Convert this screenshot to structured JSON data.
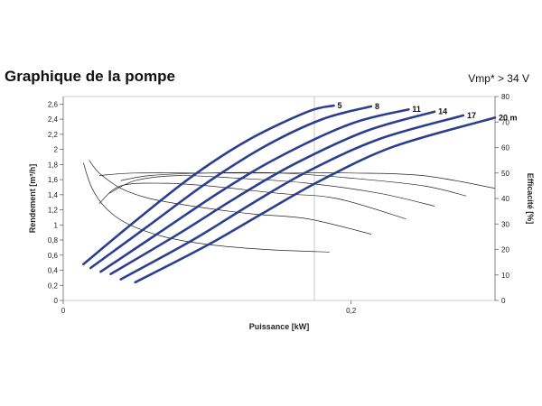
{
  "header": {
    "title": "Graphique de la pompe",
    "note": "Vmp* > 34 V"
  },
  "chart_data": {
    "type": "line",
    "xlabel": "Puissance [kW]",
    "ylabel": "Rendement [m³/h]",
    "y2label": "Efficacité [%]",
    "xlim": [
      0,
      0.3
    ],
    "ylim": [
      0,
      2.7
    ],
    "y2lim": [
      0,
      80
    ],
    "x_ticks": [
      "0",
      "0,2"
    ],
    "y_ticks": [
      "0",
      "0,2",
      "0,4",
      "0,6",
      "0,8",
      "1",
      "1,2",
      "1,4",
      "1,6",
      "1,8",
      "2",
      "2,2",
      "2,4",
      "2,6"
    ],
    "y2_ticks": [
      "0",
      "10",
      "20",
      "30",
      "40",
      "50",
      "60",
      "70",
      "80"
    ],
    "grid": false,
    "flow_color": "#2b3f8f",
    "efficiency_color": "#222222",
    "series": [
      {
        "name": "5",
        "axis": "flow",
        "x": [
          0.014,
          0.05,
          0.09,
          0.13,
          0.17,
          0.188
        ],
        "y": [
          0.48,
          1.05,
          1.65,
          2.14,
          2.5,
          2.58
        ]
      },
      {
        "name": "8",
        "axis": "flow",
        "x": [
          0.019,
          0.06,
          0.1,
          0.14,
          0.18,
          0.214
        ],
        "y": [
          0.43,
          1.0,
          1.56,
          2.04,
          2.4,
          2.57
        ]
      },
      {
        "name": "11",
        "axis": "flow",
        "x": [
          0.026,
          0.07,
          0.11,
          0.15,
          0.2,
          0.24
        ],
        "y": [
          0.38,
          0.94,
          1.45,
          1.9,
          2.34,
          2.53
        ]
      },
      {
        "name": "14",
        "axis": "flow",
        "x": [
          0.033,
          0.08,
          0.12,
          0.16,
          0.21,
          0.258
        ],
        "y": [
          0.35,
          0.88,
          1.36,
          1.8,
          2.24,
          2.5
        ]
      },
      {
        "name": "17",
        "axis": "flow",
        "x": [
          0.04,
          0.09,
          0.13,
          0.17,
          0.22,
          0.278
        ],
        "y": [
          0.28,
          0.8,
          1.27,
          1.71,
          2.14,
          2.45
        ]
      },
      {
        "name": "20 m",
        "axis": "flow",
        "x": [
          0.05,
          0.1,
          0.14,
          0.18,
          0.23,
          0.3
        ],
        "y": [
          0.24,
          0.73,
          1.17,
          1.6,
          2.04,
          2.42
        ]
      },
      {
        "axis": "efficiency",
        "x": [
          0.014,
          0.02,
          0.03,
          0.045,
          0.07,
          0.1,
          0.14,
          0.185
        ],
        "y": [
          54,
          44,
          36,
          30,
          25,
          22,
          20,
          19
        ]
      },
      {
        "axis": "efficiency",
        "x": [
          0.018,
          0.025,
          0.04,
          0.06,
          0.09,
          0.13,
          0.17,
          0.214
        ],
        "y": [
          55,
          50,
          44,
          40,
          37,
          34,
          32,
          26
        ]
      },
      {
        "axis": "efficiency",
        "x": [
          0.025,
          0.04,
          0.07,
          0.1,
          0.15,
          0.19,
          0.238
        ],
        "y": [
          38,
          45,
          46,
          45,
          42,
          40,
          32
        ]
      },
      {
        "axis": "efficiency",
        "x": [
          0.032,
          0.05,
          0.08,
          0.12,
          0.17,
          0.22,
          0.258
        ],
        "y": [
          42,
          47,
          49,
          48,
          46,
          42,
          37
        ]
      },
      {
        "axis": "efficiency",
        "x": [
          0.04,
          0.06,
          0.1,
          0.15,
          0.2,
          0.25,
          0.28
        ],
        "y": [
          47,
          49,
          50,
          50,
          48,
          45,
          41
        ]
      },
      {
        "axis": "efficiency",
        "x": [
          0.025,
          0.05,
          0.1,
          0.15,
          0.2,
          0.25,
          0.3
        ],
        "y": [
          49,
          50,
          50,
          50,
          50,
          49,
          44
        ]
      }
    ]
  }
}
